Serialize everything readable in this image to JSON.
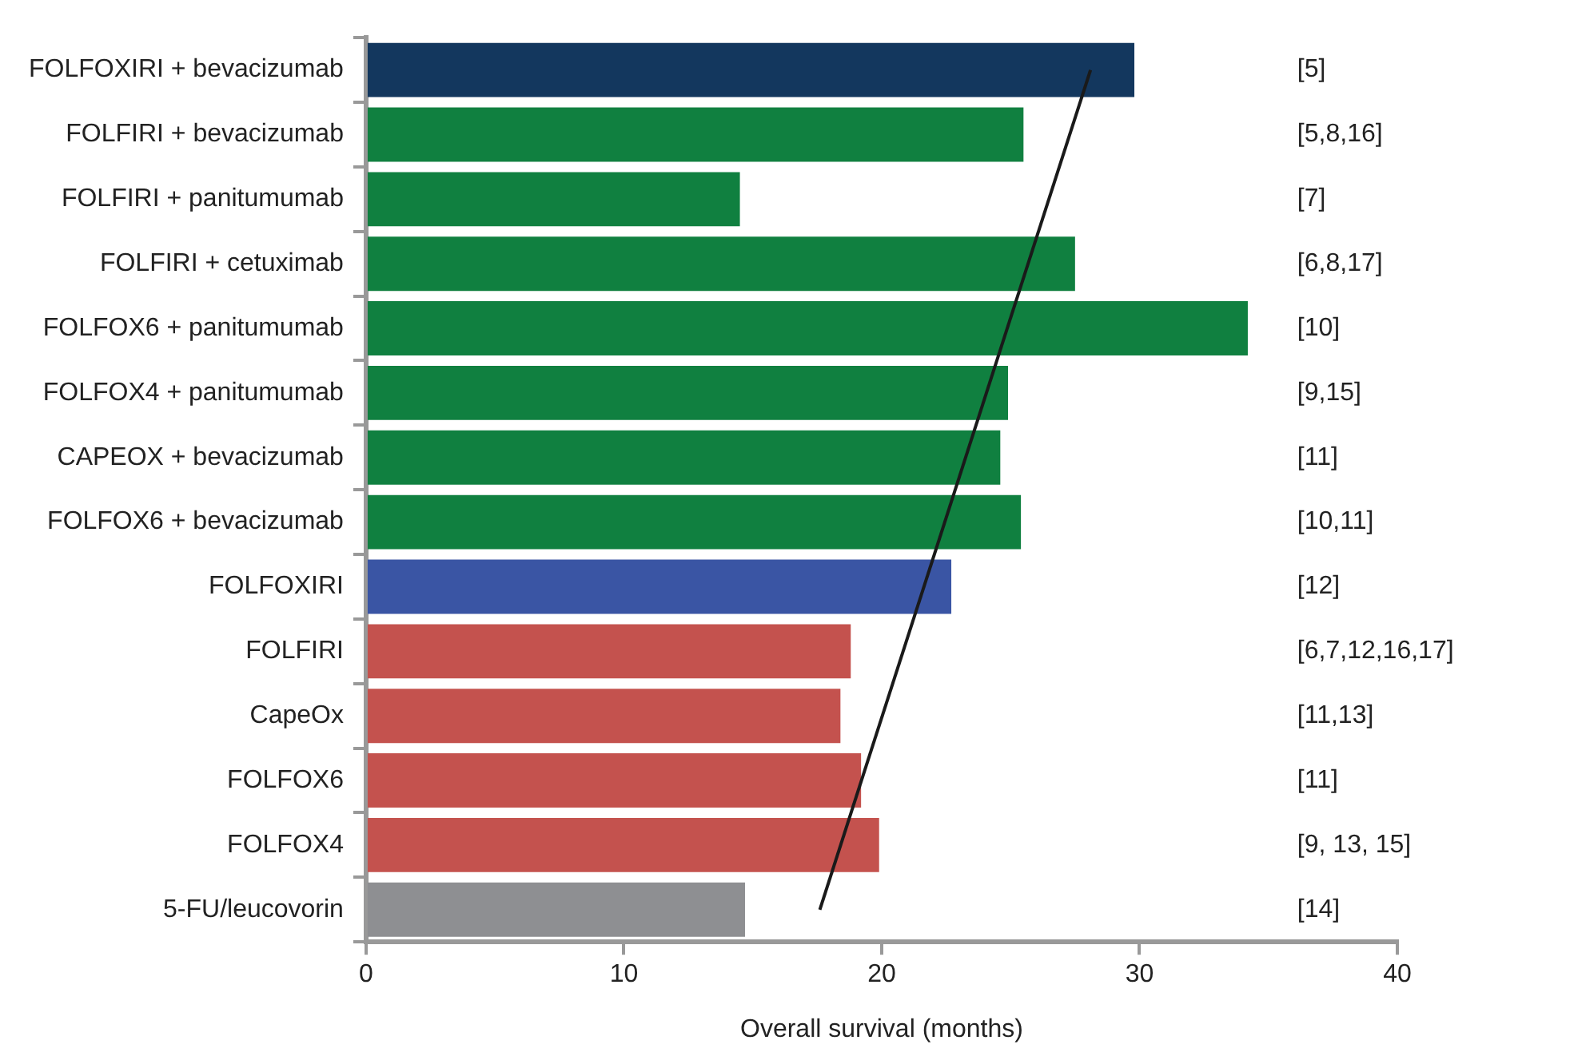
{
  "chart_data": {
    "type": "bar",
    "orientation": "horizontal",
    "xlabel": "Overall survival (months)",
    "categories": [
      "FOLFOXIRI + bevacizumab",
      "FOLFIRI + bevacizumab",
      "FOLFIRI + panitumumab",
      "FOLFIRI + cetuximab",
      "FOLFOX6 + panitumumab",
      "FOLFOX4 + panitumumab",
      "CAPEOX + bevacizumab",
      "FOLFOX6 + bevacizumab",
      "FOLFOXIRI",
      "FOLFIRI",
      "CapeOx",
      "FOLFOX6",
      "FOLFOX4",
      "5-FU/leucovorin"
    ],
    "series": [
      {
        "colors": [
          "#13375e",
          "#108040",
          "#108040",
          "#108040",
          "#108040",
          "#108040",
          "#108040",
          "#108040",
          "#3a55a4",
          "#c4524e",
          "#c4524e",
          "#c4524e",
          "#c4524e",
          "#8e8f92"
        ],
        "values": [
          29.8,
          25.5,
          14.5,
          27.5,
          34.2,
          24.9,
          24.6,
          25.4,
          22.7,
          18.8,
          18.4,
          19.2,
          19.9,
          14.7
        ]
      },
      {
        "type": "line",
        "color": "#1a1a1a",
        "values": [
          28.1,
          null,
          null,
          null,
          null,
          null,
          null,
          null,
          null,
          null,
          null,
          null,
          null,
          17.6
        ]
      }
    ],
    "xlim": [
      0,
      40
    ],
    "xticks": [
      0,
      10,
      20,
      30,
      40
    ],
    "grid": false,
    "legend": false,
    "annotations": [
      "[5]",
      "[5,8,16]",
      "[7]",
      "[6,8,17]",
      "[10]",
      "[9,15]",
      "[11]",
      "[10,11]",
      "[12]",
      "[6,7,12,16,17]",
      "[11,13]",
      "[11]",
      "[9, 13, 15]",
      "[14]"
    ]
  }
}
